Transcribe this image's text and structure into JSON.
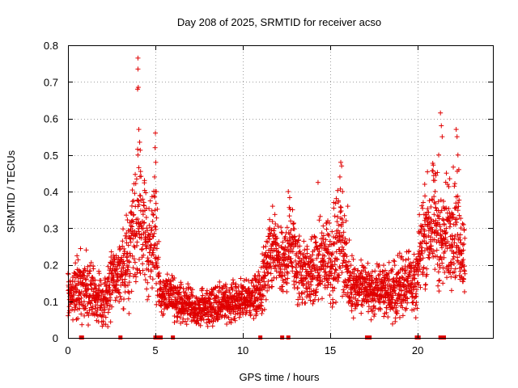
{
  "chart_data": {
    "type": "scatter",
    "title": "Day 208 of 2025, SRMTID for receiver acso",
    "xlabel": "GPS time / hours",
    "ylabel": "SRMTID / TECUs",
    "xlim": [
      0,
      24.3
    ],
    "ylim": [
      0,
      0.8
    ],
    "xticks": [
      0,
      5,
      10,
      15,
      20
    ],
    "xtick_labels": [
      "0",
      "5",
      "10",
      "15",
      "20"
    ],
    "yticks": [
      0,
      0.1,
      0.2,
      0.3,
      0.4,
      0.5,
      0.6,
      0.7,
      0.8
    ],
    "ytick_labels": [
      "0",
      "0.1",
      "0.2",
      "0.3",
      "0.4",
      "0.5",
      "0.6",
      "0.7",
      "0.8"
    ],
    "grid": true,
    "marker": "+",
    "color": "#e00000",
    "series": [
      {
        "name": "SRMTID",
        "profile": {
          "x": [
            0,
            0.5,
            1,
            1.5,
            2,
            2.5,
            3,
            3.5,
            3.9,
            4.2,
            4.6,
            5,
            5.3,
            5.8,
            6.5,
            7.5,
            8.5,
            9.5,
            10.5,
            11,
            11.3,
            11.8,
            12.3,
            12.7,
            13.2,
            13.8,
            14.3,
            14.8,
            15.2,
            15.6,
            16,
            16.5,
            17,
            17.5,
            18,
            18.5,
            19,
            19.5,
            19.9,
            20.2,
            20.6,
            21,
            21.4,
            21.8,
            22.2,
            22.6
          ],
          "y": [
            0.1,
            0.14,
            0.15,
            0.11,
            0.1,
            0.16,
            0.18,
            0.21,
            0.32,
            0.3,
            0.25,
            0.28,
            0.1,
            0.13,
            0.09,
            0.08,
            0.09,
            0.1,
            0.11,
            0.12,
            0.18,
            0.24,
            0.18,
            0.27,
            0.19,
            0.17,
            0.19,
            0.23,
            0.21,
            0.29,
            0.16,
            0.14,
            0.14,
            0.12,
            0.14,
            0.12,
            0.14,
            0.17,
            0.13,
            0.26,
            0.3,
            0.32,
            0.25,
            0.31,
            0.3,
            0.23
          ],
          "spread": [
            0.04,
            0.05,
            0.05,
            0.04,
            0.04,
            0.05,
            0.05,
            0.07,
            0.1,
            0.1,
            0.08,
            0.08,
            0.03,
            0.04,
            0.03,
            0.03,
            0.03,
            0.03,
            0.03,
            0.04,
            0.06,
            0.06,
            0.05,
            0.07,
            0.06,
            0.05,
            0.06,
            0.07,
            0.07,
            0.08,
            0.05,
            0.04,
            0.04,
            0.04,
            0.04,
            0.04,
            0.05,
            0.05,
            0.04,
            0.07,
            0.08,
            0.09,
            0.07,
            0.09,
            0.08,
            0.06
          ],
          "x_start": 0,
          "x_end": 22.7,
          "count": 3000
        },
        "peaks": [
          {
            "x": 4.0,
            "y": 0.765
          },
          {
            "x": 4.0,
            "y": 0.735
          },
          {
            "x": 4.02,
            "y": 0.685
          },
          {
            "x": 3.98,
            "y": 0.68
          },
          {
            "x": 4.05,
            "y": 0.57
          },
          {
            "x": 4.1,
            "y": 0.535
          },
          {
            "x": 4.0,
            "y": 0.5
          },
          {
            "x": 4.15,
            "y": 0.455
          },
          {
            "x": 5.0,
            "y": 0.56
          },
          {
            "x": 4.98,
            "y": 0.52
          },
          {
            "x": 5.02,
            "y": 0.48
          },
          {
            "x": 4.95,
            "y": 0.44
          },
          {
            "x": 5.05,
            "y": 0.4
          },
          {
            "x": 12.6,
            "y": 0.4
          },
          {
            "x": 11.7,
            "y": 0.36
          },
          {
            "x": 14.3,
            "y": 0.425
          },
          {
            "x": 15.6,
            "y": 0.48
          },
          {
            "x": 15.65,
            "y": 0.47
          },
          {
            "x": 15.55,
            "y": 0.44
          },
          {
            "x": 15.7,
            "y": 0.4
          },
          {
            "x": 21.3,
            "y": 0.615
          },
          {
            "x": 21.35,
            "y": 0.58
          },
          {
            "x": 21.4,
            "y": 0.55
          },
          {
            "x": 21.2,
            "y": 0.5
          },
          {
            "x": 22.2,
            "y": 0.57
          },
          {
            "x": 22.25,
            "y": 0.55
          },
          {
            "x": 22.3,
            "y": 0.5
          },
          {
            "x": 22.35,
            "y": 0.46
          },
          {
            "x": 21.0,
            "y": 0.45
          },
          {
            "x": 20.4,
            "y": 0.42
          },
          {
            "x": 16.0,
            "y": 0.36
          },
          {
            "x": 15.2,
            "y": 0.37
          }
        ],
        "zeros": [
          0.75,
          0.8,
          3.0,
          5.0,
          5.1,
          5.2,
          5.3,
          6.0,
          11.0,
          12.25,
          12.6,
          17.1,
          17.25,
          19.95,
          20.05,
          21.3,
          21.4,
          21.5
        ]
      }
    ]
  }
}
